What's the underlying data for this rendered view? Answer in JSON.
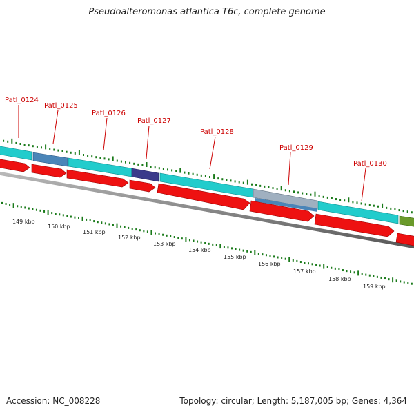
{
  "title": "Pseudoalteromonas atlantica T6c, complete genome",
  "footer": {
    "accession": "Accession: NC_008228",
    "summary": "Topology: circular; Length: 5,187,005 bp; Genes: 4,364"
  },
  "colors": {
    "forward_gene": "#22cccc",
    "reverse_gene": "#ee1111",
    "gc_tick": "#1a7a1a",
    "locus_label": "#cc0000",
    "backbone": "#888888"
  },
  "loci": [
    {
      "label": "Patl_0124"
    },
    {
      "label": "Patl_0125"
    },
    {
      "label": "Patl_0126"
    },
    {
      "label": "Patl_0127"
    },
    {
      "label": "Patl_0128"
    },
    {
      "label": "Patl_0129"
    },
    {
      "label": "Patl_0130"
    }
  ],
  "scale_labels": [
    "149 kbp",
    "150 kbp",
    "151 kbp",
    "152 kbp",
    "153 kbp",
    "154 kbp",
    "155 kbp",
    "156 kbp",
    "157 kbp",
    "158 kbp",
    "159 kbp"
  ]
}
